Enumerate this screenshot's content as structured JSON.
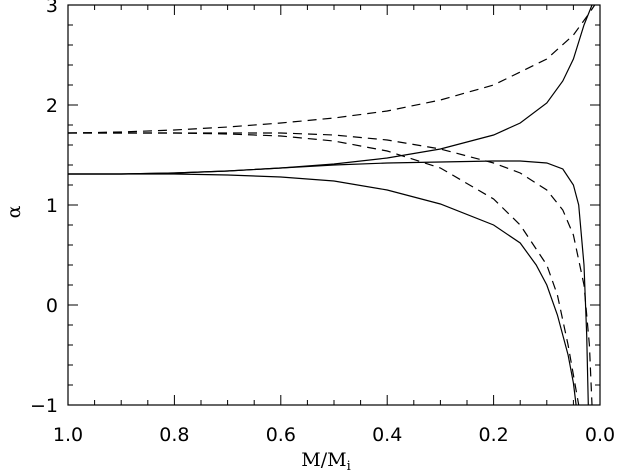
{
  "chart_data": {
    "type": "line",
    "title": "",
    "xlabel": "M/M",
    "xlabel_subscript": "i",
    "ylabel": "α",
    "xlim": [
      1.0,
      0.0
    ],
    "ylim": [
      -1,
      3
    ],
    "x_reversed": true,
    "xticks": [
      "1.0",
      "0.8",
      "0.6",
      "0.4",
      "0.2",
      "0.0"
    ],
    "yticks": [
      "−1",
      "0",
      "1",
      "2",
      "3"
    ],
    "grid": false,
    "legend": "none",
    "series": [
      {
        "style": "solid",
        "points": [
          [
            1.0,
            1.31
          ],
          [
            0.9,
            1.31
          ],
          [
            0.8,
            1.32
          ],
          [
            0.7,
            1.34
          ],
          [
            0.6,
            1.37
          ],
          [
            0.5,
            1.41
          ],
          [
            0.4,
            1.47
          ],
          [
            0.3,
            1.56
          ],
          [
            0.2,
            1.7
          ],
          [
            0.15,
            1.82
          ],
          [
            0.1,
            2.02
          ],
          [
            0.07,
            2.24
          ],
          [
            0.05,
            2.46
          ],
          [
            0.03,
            2.8
          ],
          [
            0.015,
            3.0
          ]
        ]
      },
      {
        "style": "solid",
        "points": [
          [
            1.0,
            1.31
          ],
          [
            0.9,
            1.31
          ],
          [
            0.8,
            1.32
          ],
          [
            0.7,
            1.34
          ],
          [
            0.6,
            1.37
          ],
          [
            0.5,
            1.4
          ],
          [
            0.4,
            1.42
          ],
          [
            0.3,
            1.43
          ],
          [
            0.2,
            1.44
          ],
          [
            0.15,
            1.44
          ],
          [
            0.1,
            1.42
          ],
          [
            0.07,
            1.36
          ],
          [
            0.05,
            1.2
          ],
          [
            0.04,
            1.0
          ],
          [
            0.03,
            0.4
          ],
          [
            0.025,
            -0.3
          ],
          [
            0.022,
            -1.0
          ]
        ]
      },
      {
        "style": "solid",
        "points": [
          [
            1.0,
            1.31
          ],
          [
            0.9,
            1.31
          ],
          [
            0.8,
            1.31
          ],
          [
            0.7,
            1.3
          ],
          [
            0.6,
            1.28
          ],
          [
            0.5,
            1.24
          ],
          [
            0.4,
            1.15
          ],
          [
            0.3,
            1.01
          ],
          [
            0.2,
            0.8
          ],
          [
            0.15,
            0.62
          ],
          [
            0.12,
            0.4
          ],
          [
            0.1,
            0.2
          ],
          [
            0.08,
            -0.1
          ],
          [
            0.06,
            -0.5
          ],
          [
            0.05,
            -0.78
          ],
          [
            0.045,
            -1.0
          ]
        ]
      },
      {
        "style": "dashed",
        "points": [
          [
            1.0,
            1.72
          ],
          [
            0.9,
            1.73
          ],
          [
            0.8,
            1.75
          ],
          [
            0.7,
            1.78
          ],
          [
            0.6,
            1.82
          ],
          [
            0.5,
            1.87
          ],
          [
            0.4,
            1.94
          ],
          [
            0.3,
            2.05
          ],
          [
            0.2,
            2.2
          ],
          [
            0.1,
            2.46
          ],
          [
            0.05,
            2.7
          ],
          [
            0.02,
            2.92
          ],
          [
            0.01,
            3.0
          ]
        ]
      },
      {
        "style": "dashed",
        "points": [
          [
            1.0,
            1.72
          ],
          [
            0.9,
            1.72
          ],
          [
            0.8,
            1.72
          ],
          [
            0.7,
            1.72
          ],
          [
            0.6,
            1.72
          ],
          [
            0.5,
            1.7
          ],
          [
            0.4,
            1.65
          ],
          [
            0.3,
            1.56
          ],
          [
            0.2,
            1.42
          ],
          [
            0.15,
            1.32
          ],
          [
            0.1,
            1.15
          ],
          [
            0.07,
            0.95
          ],
          [
            0.05,
            0.7
          ],
          [
            0.03,
            0.2
          ],
          [
            0.02,
            -0.4
          ],
          [
            0.015,
            -1.0
          ]
        ]
      },
      {
        "style": "dashed",
        "points": [
          [
            1.0,
            1.72
          ],
          [
            0.9,
            1.72
          ],
          [
            0.8,
            1.72
          ],
          [
            0.7,
            1.71
          ],
          [
            0.6,
            1.69
          ],
          [
            0.5,
            1.64
          ],
          [
            0.4,
            1.54
          ],
          [
            0.3,
            1.37
          ],
          [
            0.2,
            1.06
          ],
          [
            0.15,
            0.8
          ],
          [
            0.1,
            0.4
          ],
          [
            0.08,
            0.1
          ],
          [
            0.06,
            -0.4
          ],
          [
            0.05,
            -0.7
          ],
          [
            0.04,
            -1.0
          ]
        ]
      }
    ]
  }
}
